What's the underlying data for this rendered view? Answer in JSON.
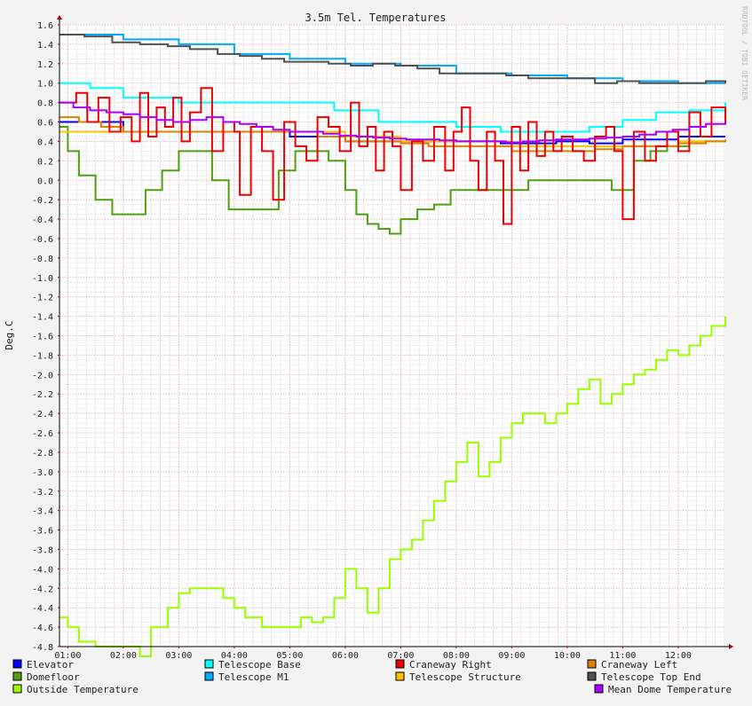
{
  "chart_data": {
    "type": "line",
    "title": "3.5m Tel. Temperatures",
    "ylabel": "Deg.C",
    "xlabel": "",
    "watermark": "RRDTOOL / TOBI OETIKER",
    "ylim": [
      -4.8,
      1.6
    ],
    "xlim": [
      0.85,
      12.85
    ],
    "y_ticks": [
      "1.6",
      "1.4",
      "1.2",
      "1.0",
      "0.8",
      "0.6",
      "0.4",
      "0.2",
      "0.0",
      "-0.2",
      "-0.4",
      "-0.6",
      "-0.8",
      "-1.0",
      "-1.2",
      "-1.4",
      "-1.6",
      "-1.8",
      "-2.0",
      "-2.2",
      "-2.4",
      "-2.6",
      "-2.8",
      "-3.0",
      "-3.2",
      "-3.4",
      "-3.6",
      "-3.8",
      "-4.0",
      "-4.2",
      "-4.4",
      "-4.6",
      "-4.8"
    ],
    "x_ticks": [
      "01:00",
      "02:00",
      "03:00",
      "04:00",
      "05:00",
      "06:00",
      "07:00",
      "08:00",
      "09:00",
      "10:00",
      "11:00",
      "12:00"
    ],
    "grid": true,
    "legend_position": "bottom",
    "series": [
      {
        "name": "Elevator",
        "color": "#0000ff",
        "x": [
          0.85,
          2.0,
          2.5,
          3.2,
          5.0,
          6.0,
          7.0,
          7.8,
          8.8,
          9.8,
          10.4,
          11.0,
          12.0,
          12.85
        ],
        "values": [
          0.6,
          0.5,
          0.5,
          0.5,
          0.45,
          0.4,
          0.4,
          0.4,
          0.38,
          0.4,
          0.38,
          0.42,
          0.45,
          0.45
        ]
      },
      {
        "name": "Domefloor",
        "color": "#4fa010",
        "x": [
          0.85,
          1.0,
          1.2,
          1.5,
          1.8,
          2.1,
          2.4,
          2.7,
          3.0,
          3.3,
          3.6,
          3.9,
          4.2,
          4.5,
          4.8,
          5.1,
          5.4,
          5.7,
          6.0,
          6.2,
          6.4,
          6.6,
          6.8,
          7.0,
          7.3,
          7.6,
          7.9,
          8.2,
          8.5,
          8.8,
          9.0,
          9.3,
          9.6,
          9.9,
          10.2,
          10.5,
          10.8,
          11.0,
          11.2,
          11.5,
          11.8,
          12.2,
          12.85
        ],
        "values": [
          0.55,
          0.3,
          0.05,
          -0.2,
          -0.35,
          -0.35,
          -0.1,
          0.1,
          0.3,
          0.3,
          0.0,
          -0.3,
          -0.3,
          -0.3,
          0.1,
          0.3,
          0.3,
          0.2,
          -0.1,
          -0.35,
          -0.45,
          -0.5,
          -0.55,
          -0.4,
          -0.3,
          -0.25,
          -0.1,
          -0.1,
          -0.1,
          -0.1,
          -0.1,
          0.0,
          0.0,
          0.0,
          0.0,
          0.0,
          -0.1,
          -0.1,
          0.2,
          0.3,
          0.35,
          0.4,
          0.4
        ]
      },
      {
        "name": "Outside Temperature",
        "color": "#99ff00",
        "x": [
          0.85,
          1.0,
          1.2,
          1.5,
          1.8,
          2.0,
          2.3,
          2.5,
          2.8,
          3.0,
          3.2,
          3.5,
          3.8,
          4.0,
          4.2,
          4.5,
          4.8,
          5.0,
          5.2,
          5.4,
          5.6,
          5.8,
          6.0,
          6.2,
          6.4,
          6.6,
          6.8,
          7.0,
          7.2,
          7.4,
          7.6,
          7.8,
          8.0,
          8.2,
          8.4,
          8.6,
          8.8,
          9.0,
          9.2,
          9.4,
          9.6,
          9.8,
          10.0,
          10.2,
          10.4,
          10.6,
          10.8,
          11.0,
          11.2,
          11.4,
          11.6,
          11.8,
          12.0,
          12.2,
          12.4,
          12.6,
          12.85
        ],
        "values": [
          -4.5,
          -4.6,
          -4.75,
          -4.8,
          -4.8,
          -4.8,
          -4.9,
          -4.6,
          -4.4,
          -4.25,
          -4.2,
          -4.2,
          -4.3,
          -4.4,
          -4.5,
          -4.6,
          -4.6,
          -4.6,
          -4.5,
          -4.55,
          -4.5,
          -4.3,
          -4.0,
          -4.2,
          -4.45,
          -4.2,
          -3.9,
          -3.8,
          -3.7,
          -3.5,
          -3.3,
          -3.1,
          -2.9,
          -2.7,
          -3.05,
          -2.9,
          -2.65,
          -2.5,
          -2.4,
          -2.4,
          -2.5,
          -2.4,
          -2.3,
          -2.15,
          -2.05,
          -2.3,
          -2.2,
          -2.1,
          -2.0,
          -1.95,
          -1.85,
          -1.75,
          -1.8,
          -1.7,
          -1.6,
          -1.5,
          -1.4
        ]
      },
      {
        "name": "Telescope Base",
        "color": "#00ffff",
        "x": [
          0.85,
          1.4,
          2.0,
          3.0,
          4.0,
          5.0,
          5.8,
          6.6,
          7.0,
          8.0,
          8.8,
          9.6,
          10.4,
          11.0,
          11.6,
          12.2,
          12.85
        ],
        "values": [
          1.0,
          0.95,
          0.85,
          0.8,
          0.8,
          0.8,
          0.72,
          0.6,
          0.6,
          0.55,
          0.5,
          0.5,
          0.55,
          0.62,
          0.7,
          0.72,
          0.8
        ]
      },
      {
        "name": "Telescope M1",
        "color": "#00aaff",
        "x": [
          0.85,
          2.0,
          3.0,
          4.0,
          5.0,
          6.0,
          7.0,
          8.0,
          9.0,
          10.0,
          11.0,
          12.0,
          12.85
        ],
        "values": [
          1.5,
          1.45,
          1.4,
          1.3,
          1.25,
          1.2,
          1.18,
          1.1,
          1.08,
          1.05,
          1.02,
          1.0,
          1.0
        ]
      },
      {
        "name": "Telescope Top End",
        "color": "#505050",
        "x": [
          0.85,
          1.3,
          1.8,
          2.3,
          2.8,
          3.2,
          3.7,
          4.1,
          4.5,
          4.9,
          5.3,
          5.7,
          6.1,
          6.5,
          6.9,
          7.3,
          7.7,
          8.1,
          8.5,
          8.9,
          9.3,
          9.7,
          10.1,
          10.5,
          10.9,
          11.3,
          11.7,
          12.1,
          12.5,
          12.85
        ],
        "values": [
          1.5,
          1.48,
          1.42,
          1.4,
          1.38,
          1.35,
          1.3,
          1.28,
          1.25,
          1.22,
          1.22,
          1.2,
          1.18,
          1.2,
          1.18,
          1.15,
          1.1,
          1.1,
          1.1,
          1.08,
          1.05,
          1.05,
          1.05,
          1.0,
          1.02,
          1.0,
          1.0,
          1.0,
          1.02,
          1.0
        ]
      },
      {
        "name": "Telescope Structure",
        "color": "#ffc000",
        "x": [
          0.85,
          2.0,
          3.0,
          4.0,
          5.0,
          6.0,
          7.0,
          8.0,
          9.0,
          10.0,
          11.0,
          12.0,
          12.85
        ],
        "values": [
          0.5,
          0.5,
          0.5,
          0.5,
          0.5,
          0.45,
          0.4,
          0.4,
          0.35,
          0.35,
          0.35,
          0.4,
          0.4
        ]
      },
      {
        "name": "Craneway Left",
        "color": "#e08000",
        "x": [
          0.85,
          1.2,
          1.6,
          2.0,
          2.5,
          3.0,
          3.5,
          4.0,
          4.5,
          5.0,
          5.5,
          6.0,
          6.5,
          7.0,
          7.5,
          8.0,
          8.5,
          9.0,
          9.5,
          10.0,
          10.5,
          11.0,
          11.5,
          12.0,
          12.5,
          12.85
        ],
        "values": [
          0.65,
          0.6,
          0.55,
          0.5,
          0.5,
          0.5,
          0.5,
          0.5,
          0.5,
          0.5,
          0.45,
          0.4,
          0.4,
          0.38,
          0.35,
          0.35,
          0.35,
          0.3,
          0.3,
          0.3,
          0.32,
          0.35,
          0.35,
          0.38,
          0.4,
          0.42
        ]
      },
      {
        "name": "Craneway Right",
        "color": "#ee0000",
        "x": [
          0.85,
          1.15,
          1.35,
          1.55,
          1.75,
          1.95,
          2.15,
          2.3,
          2.45,
          2.6,
          2.75,
          2.9,
          3.05,
          3.2,
          3.4,
          3.6,
          3.8,
          4.0,
          4.1,
          4.3,
          4.5,
          4.7,
          4.9,
          5.1,
          5.3,
          5.5,
          5.7,
          5.9,
          6.1,
          6.25,
          6.4,
          6.55,
          6.7,
          6.85,
          7.0,
          7.2,
          7.4,
          7.6,
          7.8,
          7.95,
          8.1,
          8.25,
          8.4,
          8.55,
          8.7,
          8.85,
          9.0,
          9.15,
          9.3,
          9.45,
          9.6,
          9.75,
          9.9,
          10.1,
          10.3,
          10.5,
          10.7,
          10.85,
          11.0,
          11.2,
          11.4,
          11.6,
          11.8,
          12.0,
          12.2,
          12.4,
          12.6,
          12.85
        ],
        "values": [
          0.8,
          0.9,
          0.6,
          0.85,
          0.5,
          0.65,
          0.4,
          0.9,
          0.45,
          0.75,
          0.55,
          0.85,
          0.4,
          0.7,
          0.95,
          0.3,
          0.6,
          0.5,
          -0.15,
          0.55,
          0.3,
          -0.2,
          0.6,
          0.35,
          0.2,
          0.65,
          0.55,
          0.3,
          0.8,
          0.35,
          0.55,
          0.1,
          0.5,
          0.35,
          -0.1,
          0.4,
          0.2,
          0.55,
          0.1,
          0.5,
          0.75,
          0.2,
          -0.1,
          0.5,
          0.2,
          -0.45,
          0.55,
          0.1,
          0.6,
          0.25,
          0.5,
          0.3,
          0.45,
          0.3,
          0.2,
          0.45,
          0.55,
          0.3,
          -0.4,
          0.5,
          0.2,
          0.35,
          0.5,
          0.3,
          0.7,
          0.45,
          0.75,
          0.6
        ]
      },
      {
        "name": "Mean Dome Temperature",
        "color": "#aa00ff",
        "x": [
          0.85,
          1.1,
          1.4,
          1.7,
          2.0,
          2.3,
          2.6,
          2.9,
          3.2,
          3.5,
          3.8,
          4.1,
          4.4,
          4.7,
          5.0,
          5.3,
          5.6,
          5.9,
          6.2,
          6.5,
          6.8,
          7.1,
          7.4,
          7.7,
          8.0,
          8.3,
          8.6,
          8.9,
          9.2,
          9.5,
          9.8,
          10.1,
          10.4,
          10.7,
          11.0,
          11.3,
          11.6,
          11.9,
          12.2,
          12.5,
          12.85
        ],
        "values": [
          0.8,
          0.75,
          0.72,
          0.7,
          0.68,
          0.65,
          0.62,
          0.6,
          0.62,
          0.65,
          0.6,
          0.58,
          0.55,
          0.52,
          0.5,
          0.5,
          0.48,
          0.46,
          0.45,
          0.44,
          0.43,
          0.42,
          0.42,
          0.41,
          0.4,
          0.4,
          0.4,
          0.39,
          0.4,
          0.41,
          0.42,
          0.42,
          0.43,
          0.44,
          0.45,
          0.47,
          0.5,
          0.52,
          0.55,
          0.58,
          0.6
        ]
      }
    ]
  }
}
